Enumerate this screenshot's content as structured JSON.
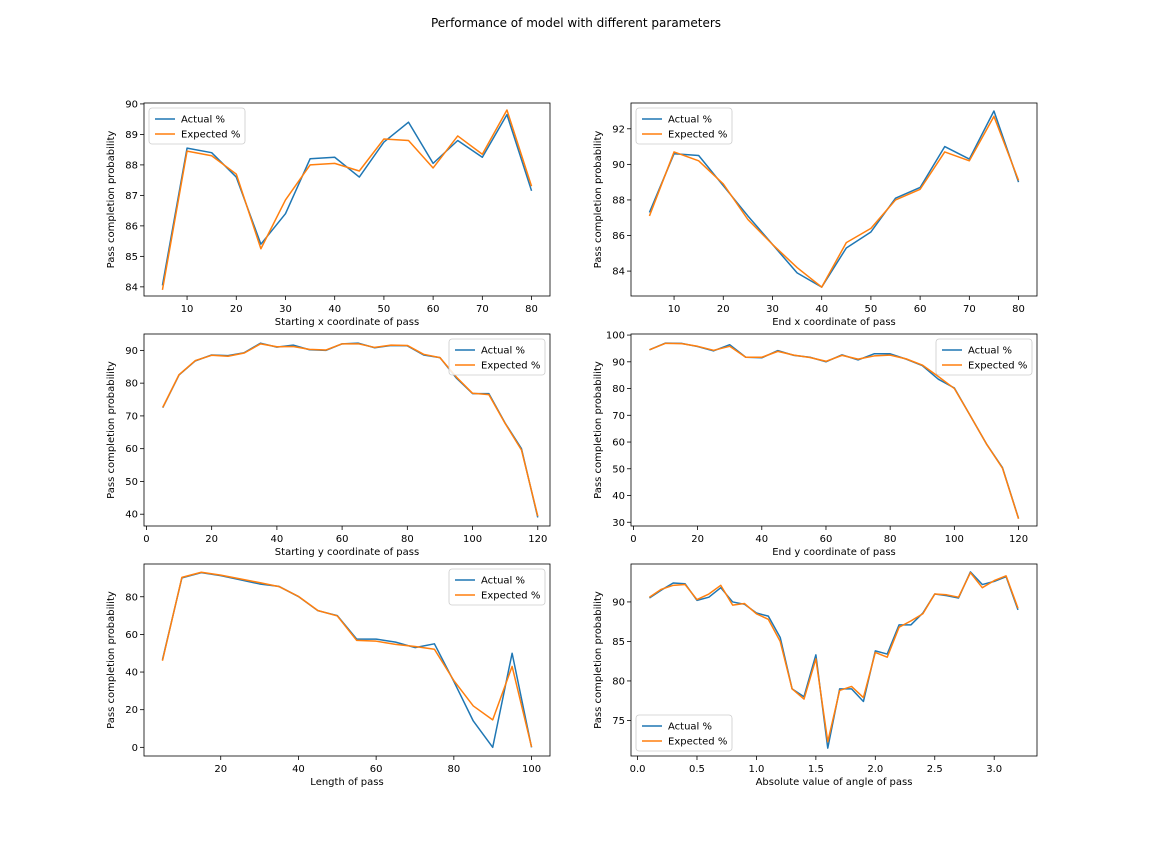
{
  "figure": {
    "title": "Performance of model with different parameters"
  },
  "colors": {
    "actual": "#1f77b4",
    "expected": "#ff7f0e"
  },
  "chart_data": [
    {
      "type": "line",
      "xlabel": "Starting x coordinate of pass",
      "ylabel": "Pass completion probability",
      "xlim": [
        1.25,
        83.75
      ],
      "ylim": [
        83.7,
        90.03
      ],
      "xticks": [
        10,
        20,
        30,
        40,
        50,
        60,
        70,
        80
      ],
      "yticks": [
        84,
        85,
        86,
        87,
        88,
        89,
        90
      ],
      "legend_loc": "upper-left",
      "x": [
        5,
        10,
        15,
        20,
        25,
        30,
        35,
        40,
        45,
        50,
        55,
        60,
        65,
        70,
        75,
        80
      ],
      "series": [
        {
          "name": "Actual %",
          "values": [
            84.05,
            88.55,
            88.4,
            87.6,
            85.4,
            86.4,
            88.2,
            88.25,
            87.6,
            88.75,
            89.4,
            88.05,
            88.8,
            88.25,
            89.65,
            87.15
          ]
        },
        {
          "name": "Expected %",
          "values": [
            83.9,
            88.45,
            88.3,
            87.7,
            85.25,
            86.85,
            88.0,
            88.05,
            87.8,
            88.85,
            88.8,
            87.9,
            88.95,
            88.35,
            89.8,
            87.3
          ]
        }
      ]
    },
    {
      "type": "line",
      "xlabel": "End x coordinate of pass",
      "ylabel": "Pass completion probability",
      "xlim": [
        1.25,
        83.75
      ],
      "ylim": [
        82.6,
        93.45
      ],
      "xticks": [
        10,
        20,
        30,
        40,
        50,
        60,
        70,
        80
      ],
      "yticks": [
        84,
        86,
        88,
        90,
        92
      ],
      "legend_loc": "upper-left",
      "x": [
        5,
        10,
        15,
        20,
        25,
        30,
        35,
        40,
        45,
        50,
        55,
        60,
        65,
        70,
        75,
        80
      ],
      "series": [
        {
          "name": "Actual %",
          "values": [
            87.3,
            90.6,
            90.5,
            88.8,
            87.1,
            85.5,
            83.9,
            83.1,
            85.3,
            86.2,
            88.1,
            88.7,
            91.0,
            90.3,
            93.0,
            89.0
          ]
        },
        {
          "name": "Expected %",
          "values": [
            87.1,
            90.7,
            90.2,
            88.9,
            86.9,
            85.5,
            84.2,
            83.1,
            85.6,
            86.4,
            88.0,
            88.6,
            90.7,
            90.2,
            92.7,
            89.1
          ]
        }
      ]
    },
    {
      "type": "line",
      "xlabel": "Starting y coordinate of pass",
      "ylabel": "Pass completion probability",
      "xlim": [
        -0.75,
        123.75
      ],
      "ylim": [
        36.4,
        95.0
      ],
      "xticks": [
        0,
        20,
        40,
        60,
        80,
        100,
        120
      ],
      "yticks": [
        40,
        50,
        60,
        70,
        80,
        90
      ],
      "legend_loc": "upper-right",
      "x": [
        5,
        10,
        15,
        20,
        25,
        30,
        35,
        40,
        45,
        50,
        55,
        60,
        65,
        70,
        75,
        80,
        85,
        90,
        95,
        100,
        105,
        110,
        115,
        120
      ],
      "series": [
        {
          "name": "Actual %",
          "values": [
            72.5,
            82.5,
            86.8,
            88.6,
            88.4,
            89.3,
            92.2,
            91.0,
            91.6,
            90.2,
            90.0,
            92.0,
            92.2,
            90.8,
            91.5,
            91.4,
            88.6,
            87.8,
            81.6,
            76.8,
            76.8,
            67.8,
            60.0,
            39.0
          ]
        },
        {
          "name": "Expected %",
          "values": [
            72.6,
            82.6,
            86.9,
            88.5,
            88.2,
            89.2,
            92.0,
            91.1,
            91.2,
            90.3,
            90.1,
            92.0,
            92.0,
            90.9,
            91.6,
            91.5,
            88.8,
            87.8,
            81.9,
            76.9,
            76.5,
            67.7,
            59.6,
            39.4
          ]
        }
      ]
    },
    {
      "type": "line",
      "xlabel": "End y coordinate of pass",
      "ylabel": "Pass completion probability",
      "xlim": [
        -0.75,
        125.75
      ],
      "ylim": [
        28.6,
        100.4
      ],
      "xticks": [
        0,
        20,
        40,
        60,
        80,
        100,
        120
      ],
      "yticks": [
        30,
        40,
        50,
        60,
        70,
        80,
        90,
        100
      ],
      "legend_loc": "upper-right",
      "x": [
        5,
        10,
        15,
        20,
        25,
        30,
        35,
        40,
        45,
        50,
        55,
        60,
        65,
        70,
        75,
        80,
        85,
        90,
        95,
        100,
        105,
        110,
        115,
        120
      ],
      "series": [
        {
          "name": "Actual %",
          "values": [
            94.5,
            97.0,
            96.9,
            95.7,
            94.1,
            96.4,
            91.7,
            91.5,
            94.2,
            92.4,
            91.7,
            90.0,
            92.6,
            90.7,
            93.0,
            93.0,
            91.0,
            88.6,
            83.5,
            80.2,
            69.8,
            59.3,
            50.4,
            31.4
          ]
        },
        {
          "name": "Expected %",
          "values": [
            94.5,
            96.9,
            96.8,
            95.8,
            94.3,
            95.8,
            91.7,
            91.7,
            93.9,
            92.5,
            91.6,
            90.2,
            92.4,
            91.0,
            92.2,
            92.5,
            91.1,
            88.8,
            84.5,
            80.0,
            69.8,
            59.3,
            50.2,
            31.3
          ]
        }
      ]
    },
    {
      "type": "line",
      "xlabel": "Length of pass",
      "ylabel": "Pass completion probability",
      "xlim": [
        0.25,
        104.75
      ],
      "ylim": [
        -4.6,
        97.4
      ],
      "xticks": [
        20,
        40,
        60,
        80,
        100
      ],
      "yticks": [
        0,
        20,
        40,
        60,
        80
      ],
      "legend_loc": "upper-right",
      "x": [
        5,
        10,
        15,
        20,
        25,
        30,
        35,
        40,
        45,
        50,
        55,
        60,
        65,
        70,
        75,
        80,
        85,
        90,
        95,
        100
      ],
      "series": [
        {
          "name": "Actual %",
          "values": [
            46.5,
            90.0,
            92.8,
            91.2,
            89.0,
            86.8,
            85.5,
            80.1,
            72.6,
            70.0,
            57.5,
            57.5,
            55.9,
            53.0,
            55.0,
            35.0,
            14.0,
            0.0,
            50.0,
            0.0
          ]
        },
        {
          "name": "Expected %",
          "values": [
            46.0,
            90.3,
            93.0,
            91.5,
            89.5,
            87.5,
            85.4,
            80.2,
            72.7,
            69.8,
            56.8,
            56.4,
            54.7,
            53.6,
            52.1,
            35.5,
            22.0,
            14.6,
            43.0,
            0.2
          ]
        }
      ]
    },
    {
      "type": "line",
      "xlabel": "Absolute value of angle of pass",
      "ylabel": "Pass completion probability",
      "xlim": [
        -0.055,
        3.36
      ],
      "ylim": [
        70.5,
        94.8
      ],
      "xticks": [
        0.0,
        0.5,
        1.0,
        1.5,
        2.0,
        2.5,
        3.0
      ],
      "yticks": [
        75,
        80,
        85,
        90
      ],
      "legend_loc": "lower-left",
      "x": [
        0.1,
        0.2,
        0.3,
        0.4,
        0.5,
        0.6,
        0.7,
        0.8,
        0.9,
        1.0,
        1.1,
        1.2,
        1.3,
        1.4,
        1.5,
        1.6,
        1.7,
        1.8,
        1.9,
        2.0,
        2.1,
        2.2,
        2.3,
        2.4,
        2.5,
        2.6,
        2.7,
        2.8,
        2.9,
        3.0,
        3.1,
        3.2
      ],
      "series": [
        {
          "name": "Actual %",
          "values": [
            90.5,
            91.5,
            92.4,
            92.3,
            90.2,
            90.6,
            91.8,
            90.0,
            89.7,
            88.6,
            88.2,
            85.5,
            79.0,
            78.0,
            83.3,
            71.5,
            79.0,
            79.0,
            77.4,
            83.8,
            83.4,
            87.1,
            87.1,
            88.6,
            91.0,
            90.8,
            90.5,
            93.8,
            92.2,
            92.6,
            93.2,
            89.0
          ]
        },
        {
          "name": "Expected %",
          "values": [
            90.6,
            91.6,
            92.1,
            92.2,
            90.3,
            91.0,
            92.1,
            89.6,
            89.8,
            88.5,
            87.8,
            85.0,
            79.0,
            77.7,
            82.8,
            72.3,
            78.8,
            79.3,
            77.9,
            83.6,
            83.0,
            86.8,
            87.6,
            88.5,
            91.0,
            90.9,
            90.6,
            93.7,
            91.8,
            92.7,
            93.3,
            89.2
          ]
        }
      ]
    }
  ]
}
